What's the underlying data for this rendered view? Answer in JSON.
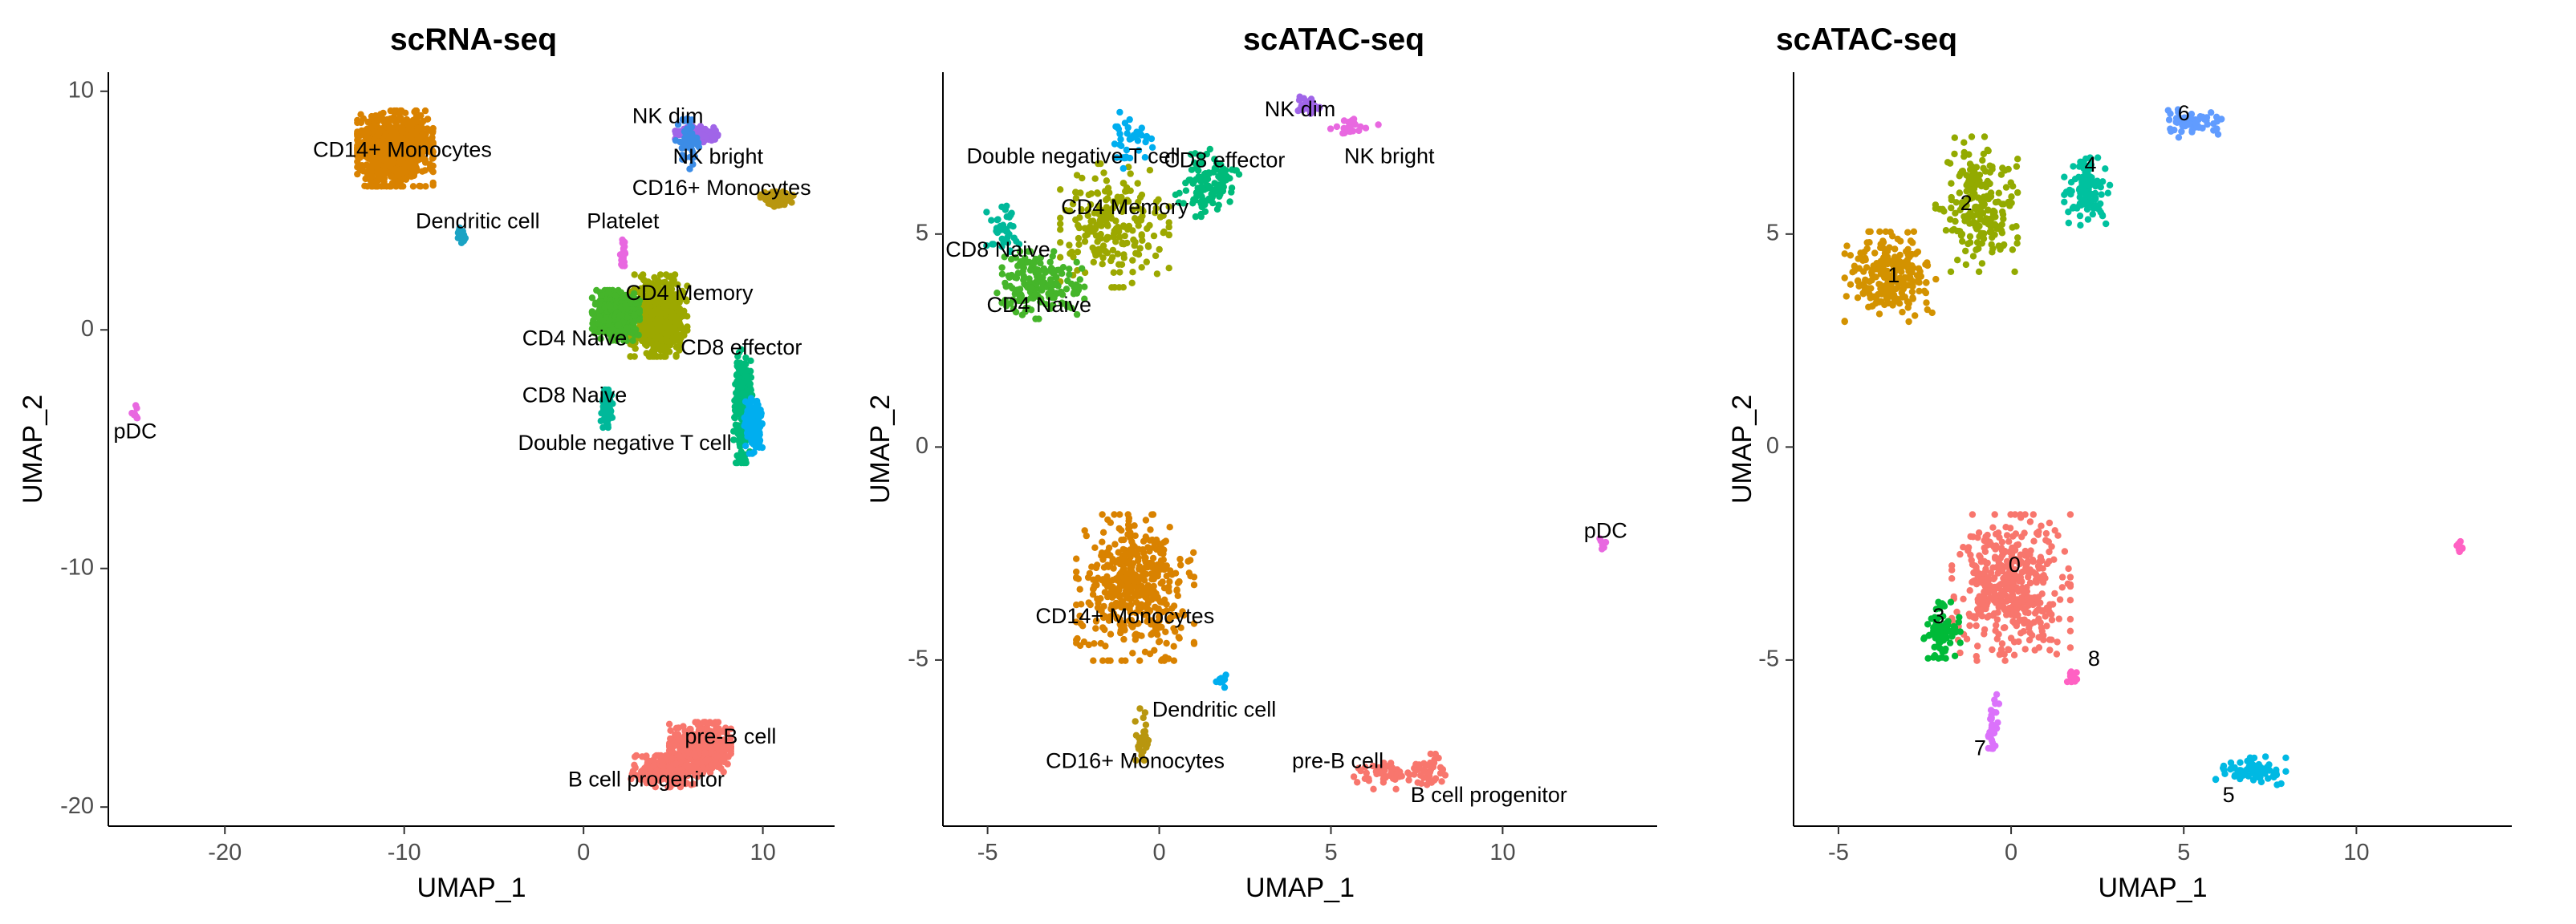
{
  "chart_data": [
    {
      "type": "scatter",
      "title": "scRNA-seq",
      "xlabel": "UMAP_1",
      "ylabel": "UMAP_2",
      "xlim": [
        -26.5,
        14
      ],
      "ylim": [
        -20.8,
        10.8
      ],
      "xticks": [
        -20,
        -10,
        0,
        10
      ],
      "xtick_labels": [
        "-20",
        "-10",
        "0",
        "10"
      ],
      "yticks": [
        10,
        0,
        -10,
        -20
      ],
      "ytick_labels": [
        "10",
        "0",
        "-10",
        "-20"
      ],
      "grid": false,
      "legend": "none",
      "clusters": [
        {
          "label": "CD14+ Monocytes",
          "color": "#D98200",
          "center": [
            -10.5,
            7.6
          ],
          "spread": [
            1.6,
            1.2
          ],
          "n": 900
        },
        {
          "label": "Dendritic cell",
          "color": "#1aa3c4",
          "center": [
            -6.8,
            3.9
          ],
          "spread": [
            0.2,
            0.3
          ],
          "n": 20
        },
        {
          "label": "NK dim",
          "color": "#a065e8",
          "center": [
            6.3,
            8.2
          ],
          "spread": [
            0.9,
            0.25
          ],
          "n": 160
        },
        {
          "label": "NK bright",
          "color": "#3C8CE6",
          "center": [
            5.8,
            7.8
          ],
          "spread": [
            0.5,
            0.8
          ],
          "n": 60
        },
        {
          "label": "CD16+ Monocytes",
          "color": "#B8960F",
          "center": [
            10.8,
            5.5
          ],
          "spread": [
            0.7,
            0.25
          ],
          "n": 120
        },
        {
          "label": "Platelet",
          "color": "#e868e0",
          "center": [
            2.2,
            3.2
          ],
          "spread": [
            0.12,
            0.5
          ],
          "n": 25
        },
        {
          "label": "CD4 Memory",
          "color": "#9ca800",
          "center": [
            4.2,
            0.6
          ],
          "spread": [
            1.2,
            1.3
          ],
          "n": 700
        },
        {
          "label": "CD4 Naive",
          "color": "#45b52a",
          "center": [
            1.8,
            0.6
          ],
          "spread": [
            1.0,
            0.8
          ],
          "n": 500
        },
        {
          "label": "CD8 effector",
          "color": "#00BB7A",
          "center": [
            8.9,
            -3.2
          ],
          "spread": [
            0.4,
            1.8
          ],
          "n": 250
        },
        {
          "label": "CD8 Naive",
          "color": "#00b89a",
          "center": [
            1.3,
            -3.3
          ],
          "spread": [
            0.25,
            0.6
          ],
          "n": 100
        },
        {
          "label": "Double negative T cell",
          "color": "#00AEEF",
          "center": [
            9.5,
            -4.0
          ],
          "spread": [
            0.4,
            0.9
          ],
          "n": 150
        },
        {
          "label": "pDC",
          "color": "#e868e0",
          "center": [
            -25.0,
            -3.5
          ],
          "spread": [
            0.2,
            0.3
          ],
          "n": 12
        },
        {
          "label": "pre-B cell",
          "color": "#F8766D",
          "center": [
            6.5,
            -17.5
          ],
          "spread": [
            1.3,
            0.8
          ],
          "n": 500
        },
        {
          "label": "B cell progenitor",
          "color": "#F8766D",
          "center": [
            4.5,
            -18.5
          ],
          "spread": [
            1.4,
            0.5
          ],
          "n": 250
        }
      ],
      "labels": [
        {
          "text": "CD14+ Monocytes",
          "x": -10.1,
          "y": 7.5
        },
        {
          "text": "NK dim",
          "x": 4.7,
          "y": 8.9
        },
        {
          "text": "NK bright",
          "x": 7.5,
          "y": 7.2
        },
        {
          "text": "CD16+ Monocytes",
          "x": 7.7,
          "y": 5.9
        },
        {
          "text": "Dendritic cell",
          "x": -5.9,
          "y": 4.5
        },
        {
          "text": "Platelet",
          "x": 2.2,
          "y": 4.5
        },
        {
          "text": "CD4 Memory",
          "x": 5.9,
          "y": 1.5
        },
        {
          "text": "CD4 Naive",
          "x": -0.5,
          "y": -0.4
        },
        {
          "text": "CD8 effector",
          "x": 8.8,
          "y": -0.8
        },
        {
          "text": "CD8 Naive",
          "x": -0.5,
          "y": -2.8
        },
        {
          "text": "Double negative T cell",
          "x": 2.3,
          "y": -4.8
        },
        {
          "text": "pDC",
          "x": -25.0,
          "y": -4.3
        },
        {
          "text": "pre-B cell",
          "x": 8.2,
          "y": -17.1
        },
        {
          "text": "B cell progenitor",
          "x": 3.5,
          "y": -18.9
        }
      ]
    },
    {
      "type": "scatter",
      "title": "scATAC-seq",
      "xlabel": "UMAP_1",
      "ylabel": "UMAP_2",
      "xlim": [
        -6.3,
        14.5
      ],
      "ylim": [
        -8.9,
        8.8
      ],
      "xticks": [
        -5,
        0,
        5,
        10
      ],
      "xtick_labels": [
        "-5",
        "0",
        "5",
        "10"
      ],
      "yticks": [
        5,
        0,
        -5
      ],
      "ytick_labels": [
        "5",
        "0",
        "-5"
      ],
      "grid": false,
      "legend": "none",
      "clusters": [
        {
          "label": "CD4 Memory",
          "color": "#9ca800",
          "center": [
            -1.3,
            5.2
          ],
          "spread": [
            1.2,
            1.1
          ],
          "n": 220
        },
        {
          "label": "CD4 Naive",
          "color": "#45b52a",
          "center": [
            -3.5,
            3.8
          ],
          "spread": [
            1.0,
            0.6
          ],
          "n": 180
        },
        {
          "label": "CD8 Naive",
          "color": "#00b89a",
          "center": [
            -4.5,
            5.0
          ],
          "spread": [
            0.4,
            0.5
          ],
          "n": 40
        },
        {
          "label": "CD8 effector",
          "color": "#00BB7A",
          "center": [
            1.4,
            6.2
          ],
          "spread": [
            0.7,
            0.6
          ],
          "n": 110
        },
        {
          "label": "Double negative T cell",
          "color": "#00AEEF",
          "center": [
            -0.8,
            7.2
          ],
          "spread": [
            0.5,
            0.5
          ],
          "n": 40
        },
        {
          "label": "NK dim",
          "color": "#a065e8",
          "center": [
            4.3,
            8.0
          ],
          "spread": [
            0.35,
            0.2
          ],
          "n": 25
        },
        {
          "label": "NK bright",
          "color": "#e868e0",
          "center": [
            5.6,
            7.5
          ],
          "spread": [
            0.6,
            0.15
          ],
          "n": 25
        },
        {
          "label": "CD14+ Monocytes",
          "color": "#D98200",
          "center": [
            -0.7,
            -3.3
          ],
          "spread": [
            1.3,
            1.3
          ],
          "n": 450
        },
        {
          "label": "CD16+ Monocytes",
          "color": "#B8960F",
          "center": [
            -0.5,
            -6.8
          ],
          "spread": [
            0.15,
            0.5
          ],
          "n": 30
        },
        {
          "label": "Dendritic cell",
          "color": "#00AEEF",
          "center": [
            1.8,
            -5.5
          ],
          "spread": [
            0.15,
            0.15
          ],
          "n": 10
        },
        {
          "label": "pDC",
          "color": "#e868e0",
          "center": [
            13.0,
            -2.3
          ],
          "spread": [
            0.15,
            0.12
          ],
          "n": 8
        },
        {
          "label": "pre-B cell",
          "color": "#F8766D",
          "center": [
            6.5,
            -7.7
          ],
          "spread": [
            0.7,
            0.25
          ],
          "n": 50
        },
        {
          "label": "B cell progenitor",
          "color": "#F8766D",
          "center": [
            7.8,
            -7.6
          ],
          "spread": [
            0.4,
            0.3
          ],
          "n": 40
        }
      ],
      "labels": [
        {
          "text": "NK dim",
          "x": 4.1,
          "y": 7.9
        },
        {
          "text": "NK bright",
          "x": 6.7,
          "y": 6.8
        },
        {
          "text": "Double negative T cell",
          "x": -2.5,
          "y": 6.8
        },
        {
          "text": "CD8 effector",
          "x": 1.9,
          "y": 6.7
        },
        {
          "text": "CD4 Memory",
          "x": -1.0,
          "y": 5.6
        },
        {
          "text": "CD8 Naive",
          "x": -4.7,
          "y": 4.6
        },
        {
          "text": "CD4 Naive",
          "x": -3.5,
          "y": 3.3
        },
        {
          "text": "pDC",
          "x": 13.0,
          "y": -2.0
        },
        {
          "text": "CD14+ Monocytes",
          "x": -1.0,
          "y": -4.0
        },
        {
          "text": "Dendritic cell",
          "x": 1.6,
          "y": -6.2
        },
        {
          "text": "CD16+ Monocytes",
          "x": -0.7,
          "y": -7.4
        },
        {
          "text": "pre-B cell",
          "x": 5.2,
          "y": -7.4
        },
        {
          "text": "B cell progenitor",
          "x": 9.6,
          "y": -8.2
        }
      ]
    },
    {
      "type": "scatter",
      "title": "scATAC-seq",
      "xlabel": "UMAP_1",
      "ylabel": "UMAP_2",
      "xlim": [
        -6.3,
        14.5
      ],
      "ylim": [
        -8.9,
        8.8
      ],
      "xticks": [
        -5,
        0,
        5,
        10
      ],
      "xtick_labels": [
        "-5",
        "0",
        "5",
        "10"
      ],
      "yticks": [
        5,
        0,
        -5
      ],
      "ytick_labels": [
        "5",
        "0",
        "-5"
      ],
      "grid": false,
      "legend": "none",
      "clusters": [
        {
          "label": "0",
          "color": "#F8766D",
          "center": [
            0.0,
            -3.3
          ],
          "spread": [
            1.3,
            1.3
          ],
          "n": 450
        },
        {
          "label": "1",
          "color": "#D39200",
          "center": [
            -3.5,
            4.0
          ],
          "spread": [
            1.0,
            0.8
          ],
          "n": 230
        },
        {
          "label": "2",
          "color": "#93AA00",
          "center": [
            -1.0,
            5.7
          ],
          "spread": [
            0.9,
            1.2
          ],
          "n": 220
        },
        {
          "label": "3",
          "color": "#00BA38",
          "center": [
            -2.0,
            -4.3
          ],
          "spread": [
            0.4,
            0.5
          ],
          "n": 90
        },
        {
          "label": "4",
          "color": "#00C19F",
          "center": [
            2.2,
            6.0
          ],
          "spread": [
            0.5,
            0.6
          ],
          "n": 110
        },
        {
          "label": "5",
          "color": "#00B9E3",
          "center": [
            6.9,
            -7.6
          ],
          "spread": [
            0.8,
            0.25
          ],
          "n": 80
        },
        {
          "label": "6",
          "color": "#619CFF",
          "center": [
            5.3,
            7.6
          ],
          "spread": [
            0.6,
            0.25
          ],
          "n": 60
        },
        {
          "label": "7",
          "color": "#DB72FB",
          "center": [
            -0.5,
            -6.6
          ],
          "spread": [
            0.12,
            0.6
          ],
          "n": 35
        },
        {
          "label": "8",
          "color": "#FF61C3",
          "center": [
            1.8,
            -5.4
          ],
          "spread": [
            0.15,
            0.15
          ],
          "n": 15
        },
        {
          "label": "8",
          "color": "#FF61C3",
          "center": [
            13.0,
            -2.3
          ],
          "spread": [
            0.15,
            0.12
          ],
          "n": 8
        }
      ],
      "labels": [
        {
          "text": "6",
          "x": 5.0,
          "y": 7.8
        },
        {
          "text": "4",
          "x": 2.3,
          "y": 6.6
        },
        {
          "text": "2",
          "x": -1.3,
          "y": 5.7
        },
        {
          "text": "1",
          "x": -3.4,
          "y": 4.0
        },
        {
          "text": "0",
          "x": 0.1,
          "y": -2.8
        },
        {
          "text": "3",
          "x": -2.1,
          "y": -4.0
        },
        {
          "text": "8",
          "x": 2.4,
          "y": -5.0
        },
        {
          "text": "7",
          "x": -0.9,
          "y": -7.1
        },
        {
          "text": "5",
          "x": 6.3,
          "y": -8.2
        }
      ]
    }
  ]
}
